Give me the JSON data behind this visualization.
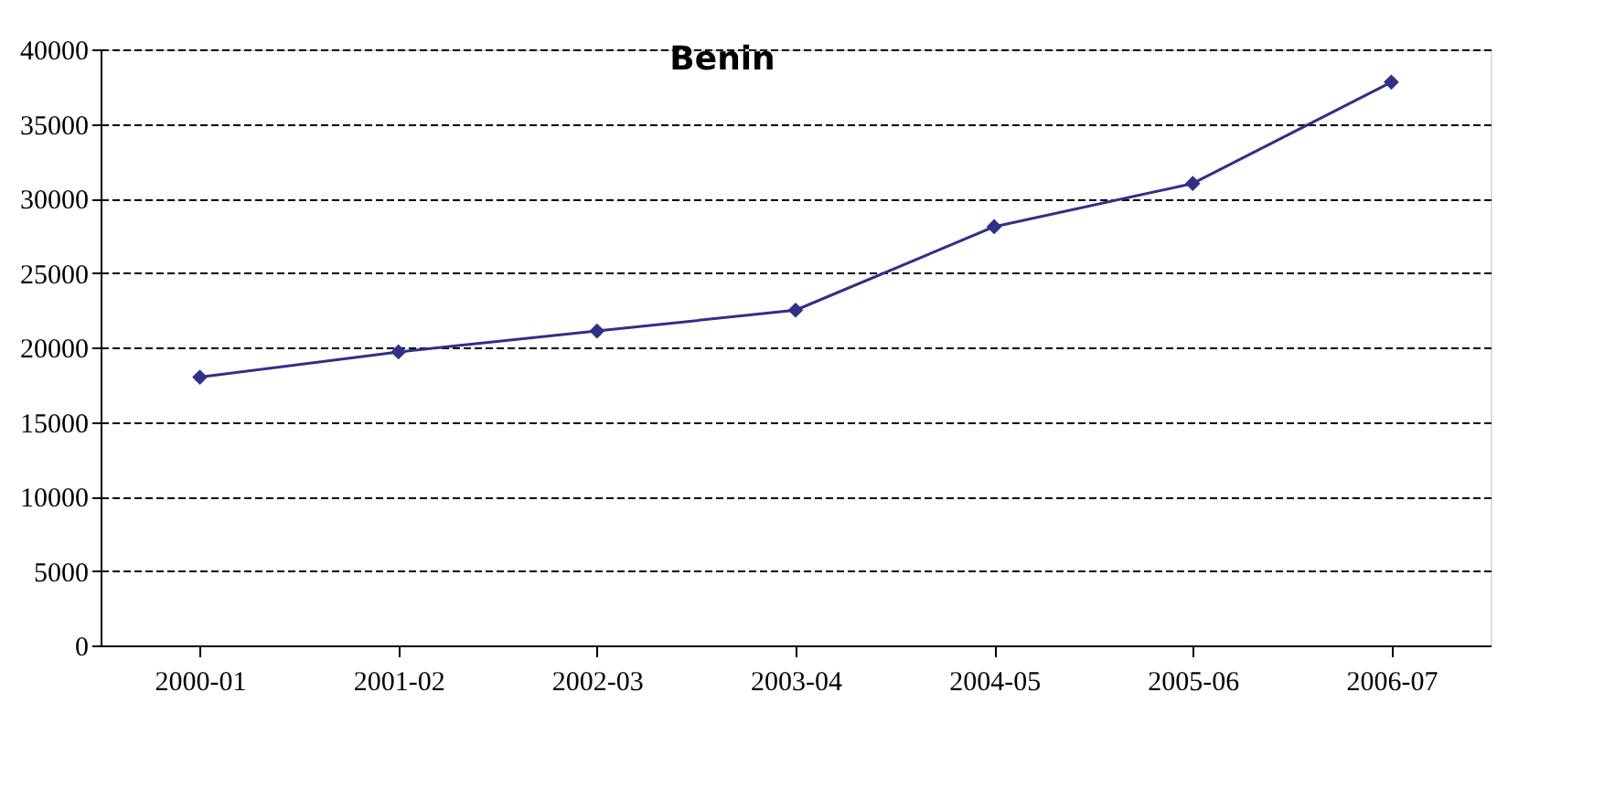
{
  "chart_data": {
    "type": "line",
    "title": "Benin",
    "categories": [
      "2000-01",
      "2001-02",
      "2002-03",
      "2003-04",
      "2004-05",
      "2005-06",
      "2006-07"
    ],
    "series": [
      {
        "color": "#2e3187",
        "values": [
          18000,
          19700,
          21100,
          22500,
          28100,
          31000,
          37800
        ]
      }
    ],
    "ylim": [
      0,
      40000
    ],
    "yticks": [
      0,
      5000,
      10000,
      15000,
      20000,
      25000,
      30000,
      35000,
      40000
    ],
    "grid": "y",
    "marker": "diamond",
    "line_style": "solid",
    "legend": false
  }
}
